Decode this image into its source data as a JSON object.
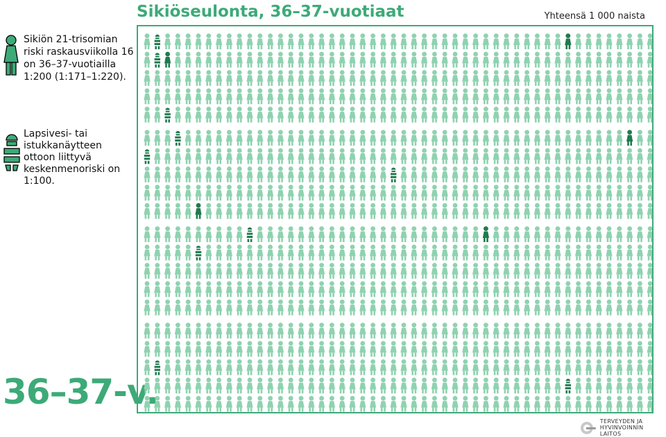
{
  "title": "Sikiöseulonta, 36–37-vuotiaat",
  "total_label": "Yhteensä 1 000 naista",
  "risk_text": "Sikiön 21-trisomian riski raskausviikolla 16 on 36–37-vuotiailla 1:200 (1:171–1:220).",
  "miscarriage_text": "Lapsivesi- tai istukkanäytteen ottoon liittyvä keskenmenoriski on 1:100.",
  "age_label": "36–37-v.",
  "logo": {
    "line1": "TERVEYDEN JA",
    "line2": "HYVINVOINNIN LAITOS"
  },
  "colors": {
    "base": "#8fd2b0",
    "affected": "#1f7a4f",
    "accent": "#3daa78"
  },
  "icons": {
    "woman": "woman-figure-icon",
    "split_woman": "split-woman-figure-icon"
  },
  "chart_data": {
    "type": "pictogram",
    "total": 1000,
    "units": "naista",
    "counts": {
      "trisomy_21": 5,
      "procedure_miscarriage": 10,
      "unaffected": 985
    },
    "blocks": {
      "rows": 4,
      "cols": 10,
      "per_block": 25
    },
    "trisomy_positions": [
      7,
      201,
      295,
      477,
      653
    ],
    "miscarriage_positions": [
      1,
      6,
      22,
      253,
      255,
      364,
      530,
      550,
      761,
      966
    ]
  }
}
